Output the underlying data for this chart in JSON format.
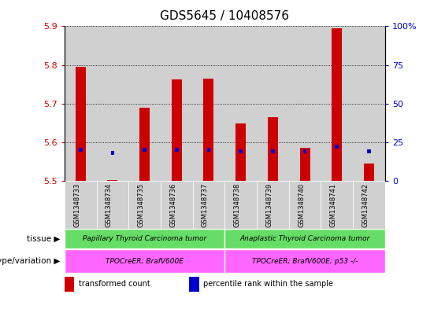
{
  "title": "GDS5645 / 10408576",
  "samples": [
    "GSM1348733",
    "GSM1348734",
    "GSM1348735",
    "GSM1348736",
    "GSM1348737",
    "GSM1348738",
    "GSM1348739",
    "GSM1348740",
    "GSM1348741",
    "GSM1348742"
  ],
  "transformed_count": [
    5.795,
    5.502,
    5.69,
    5.762,
    5.764,
    5.648,
    5.665,
    5.585,
    5.895,
    5.545
  ],
  "percentile_rank": [
    20,
    18,
    20,
    20,
    20,
    19,
    19,
    19,
    22,
    19
  ],
  "ylim_left": [
    5.5,
    5.9
  ],
  "ylim_right": [
    0,
    100
  ],
  "yticks_left": [
    5.5,
    5.6,
    5.7,
    5.8,
    5.9
  ],
  "yticks_right": [
    0,
    25,
    50,
    75,
    100
  ],
  "ytick_labels_right": [
    "0",
    "25",
    "50",
    "75",
    "100%"
  ],
  "bar_color_red": "#cc0000",
  "bar_color_blue": "#0000cc",
  "bar_width": 0.32,
  "blue_square_size": 0.12,
  "tissue_groups": [
    {
      "label": "Papillary Thyroid Carcinoma tumor",
      "start": 0,
      "end": 4,
      "color": "#66dd66"
    },
    {
      "label": "Anaplastic Thyroid Carcinoma tumor",
      "start": 5,
      "end": 9,
      "color": "#66dd66"
    }
  ],
  "genotype_groups": [
    {
      "label": "TPOCreER; BrafV600E",
      "start": 0,
      "end": 4,
      "color": "#ff66ff"
    },
    {
      "label": "TPOCreER; BrafV600E; p53 -/-",
      "start": 5,
      "end": 9,
      "color": "#ff66ff"
    }
  ],
  "tissue_label": "tissue",
  "genotype_label": "genotype/variation",
  "legend_items": [
    {
      "color": "#cc0000",
      "label": "transformed count"
    },
    {
      "color": "#0000cc",
      "label": "percentile rank within the sample"
    }
  ],
  "axis_label_color_left": "#cc0000",
  "axis_label_color_right": "#0000cc",
  "background_color": "#ffffff",
  "col_bg_color": "#d0d0d0",
  "grid_color": "#000000",
  "title_fontsize": 11,
  "tick_fontsize": 8,
  "sample_fontsize": 6
}
